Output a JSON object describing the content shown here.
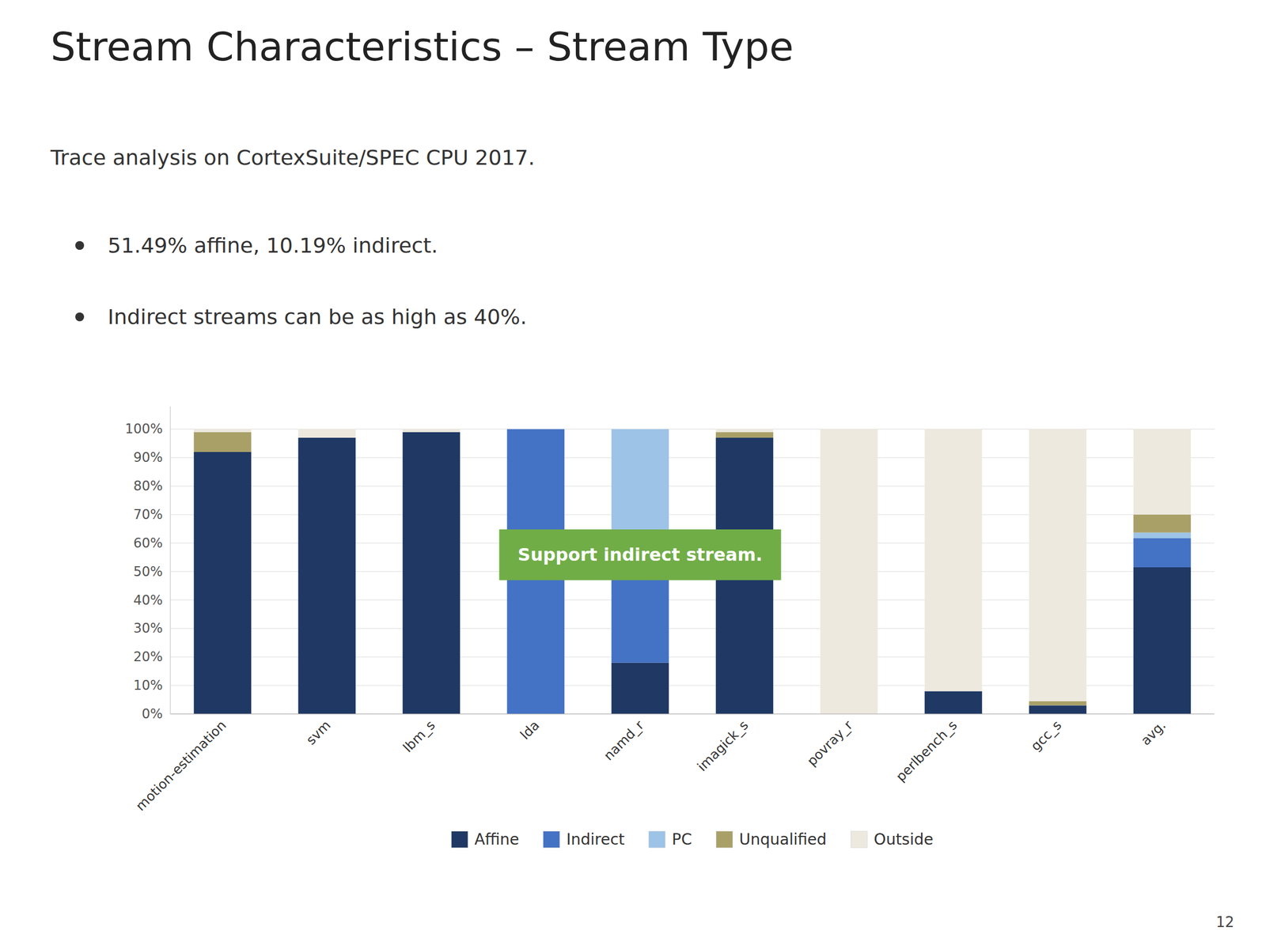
{
  "chart_data": {
    "type": "bar",
    "stacked": true,
    "title": "Stream Characteristics – Stream Type",
    "subtitle": "Trace analysis on CortexSuite/SPEC CPU 2017.",
    "bullets": [
      "51.49% affine, 10.19% indirect.",
      "Indirect streams can be as high as 40%."
    ],
    "annotations": [
      {
        "text": "Support indirect stream.",
        "color": "#70ad47"
      }
    ],
    "page_number": "12",
    "categories": [
      "motion-estimation",
      "svm",
      "lbm_s",
      "lda",
      "namd_r",
      "imagick_s",
      "povray_r",
      "perlbench_s",
      "gcc_s",
      "avg."
    ],
    "series": [
      {
        "name": "Affine",
        "color": "#1f3864",
        "values": [
          0.92,
          0.97,
          0.99,
          0.0,
          0.18,
          0.97,
          0.0,
          0.08,
          0.03,
          0.515
        ]
      },
      {
        "name": "Indirect",
        "color": "#4472c4",
        "values": [
          0.0,
          0.0,
          0.0,
          1.0,
          0.42,
          0.0,
          0.0,
          0.0,
          0.0,
          0.102
        ]
      },
      {
        "name": "PC",
        "color": "#9dc3e6",
        "values": [
          0.0,
          0.0,
          0.0,
          0.0,
          0.4,
          0.0,
          0.0,
          0.0,
          0.0,
          0.02
        ]
      },
      {
        "name": "Unqualified",
        "color": "#a9a068",
        "values": [
          0.07,
          0.0,
          0.0,
          0.0,
          0.0,
          0.02,
          0.0,
          0.0,
          0.015,
          0.063
        ]
      },
      {
        "name": "Outside",
        "color": "#ede9df",
        "values": [
          0.01,
          0.03,
          0.01,
          0.0,
          0.0,
          0.01,
          1.0,
          0.92,
          0.955,
          0.3
        ]
      }
    ],
    "ylim": [
      0,
      1.08
    ],
    "yticks": [
      {
        "value": 0.0,
        "label": "0%"
      },
      {
        "value": 0.1,
        "label": "10%"
      },
      {
        "value": 0.2,
        "label": "20%"
      },
      {
        "value": 0.3,
        "label": "30%"
      },
      {
        "value": 0.4,
        "label": "40%"
      },
      {
        "value": 0.5,
        "label": "50%"
      },
      {
        "value": 0.6,
        "label": "60%"
      },
      {
        "value": 0.7,
        "label": "70%"
      },
      {
        "value": 0.8,
        "label": "80%"
      },
      {
        "value": 0.9,
        "label": "90%"
      },
      {
        "value": 1.0,
        "label": "100%"
      }
    ],
    "grid": true,
    "legend": "bottom"
  }
}
